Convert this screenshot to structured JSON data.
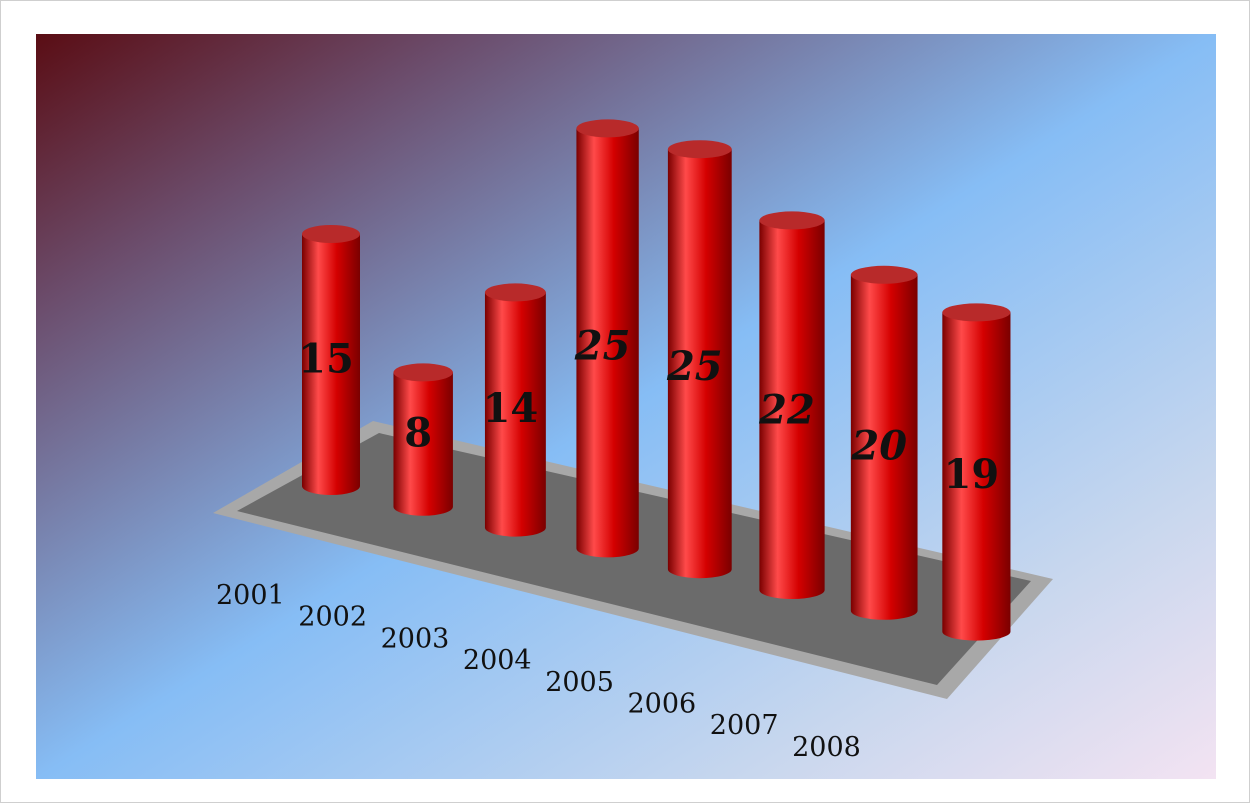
{
  "chart_data": {
    "type": "bar",
    "style": "3d-cylinder",
    "categories": [
      "2001",
      "2002",
      "2003",
      "2004",
      "2005",
      "2006",
      "2007",
      "2008"
    ],
    "values": [
      15,
      8,
      14,
      25,
      25,
      22,
      20,
      19
    ],
    "data_labels": [
      "15",
      "8",
      "14",
      "25",
      "25",
      "22",
      "20",
      "19"
    ],
    "title": "",
    "xlabel": "",
    "ylabel": "",
    "ylim": [
      0,
      25
    ],
    "grid": false,
    "legend": "none",
    "colors": {
      "bar": "#d40000",
      "bar_dark": "#7a0000",
      "bar_highlight": "#ff4a4a",
      "bar_top": "#b82a2a",
      "platform": "#6b6b6b",
      "platform_rim": "#a8a8a8",
      "bg_top_left": "#5a0d14",
      "bg_mid": "#86bdf5",
      "bg_bottom_right": "#f3e3f2"
    }
  }
}
